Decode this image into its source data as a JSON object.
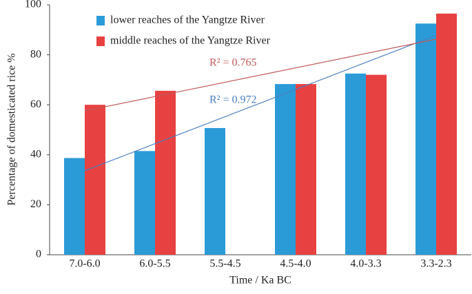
{
  "chart_data": {
    "type": "bar",
    "x_label": "Time / Ka BC",
    "y_label": "Percentage of domesticated rice %",
    "categories": [
      "7.0-6.0",
      "6.0-5.5",
      "5.5-4.5",
      "4.5-4.0",
      "4.0-3.3",
      "3.3-2.3"
    ],
    "series": [
      {
        "name": "lower reaches of the Yangtze River",
        "color": "#2b9bd8",
        "values": [
          38.7,
          41.5,
          50.7,
          68.3,
          72.5,
          92.5
        ],
        "trendline_color": "#4a7fc0",
        "r2_label": "R² = 0.972"
      },
      {
        "name": "middle reaches of the Yangtze River",
        "color": "#e84141",
        "values": [
          60,
          65.6,
          null,
          68.3,
          72,
          96.5
        ],
        "trendline_color": "#c05a5a",
        "r2_label": "R² = 0.765"
      }
    ],
    "ylim": [
      0,
      100
    ],
    "yticks": [
      0,
      20,
      40,
      60,
      80,
      100
    ],
    "trendline": true
  }
}
